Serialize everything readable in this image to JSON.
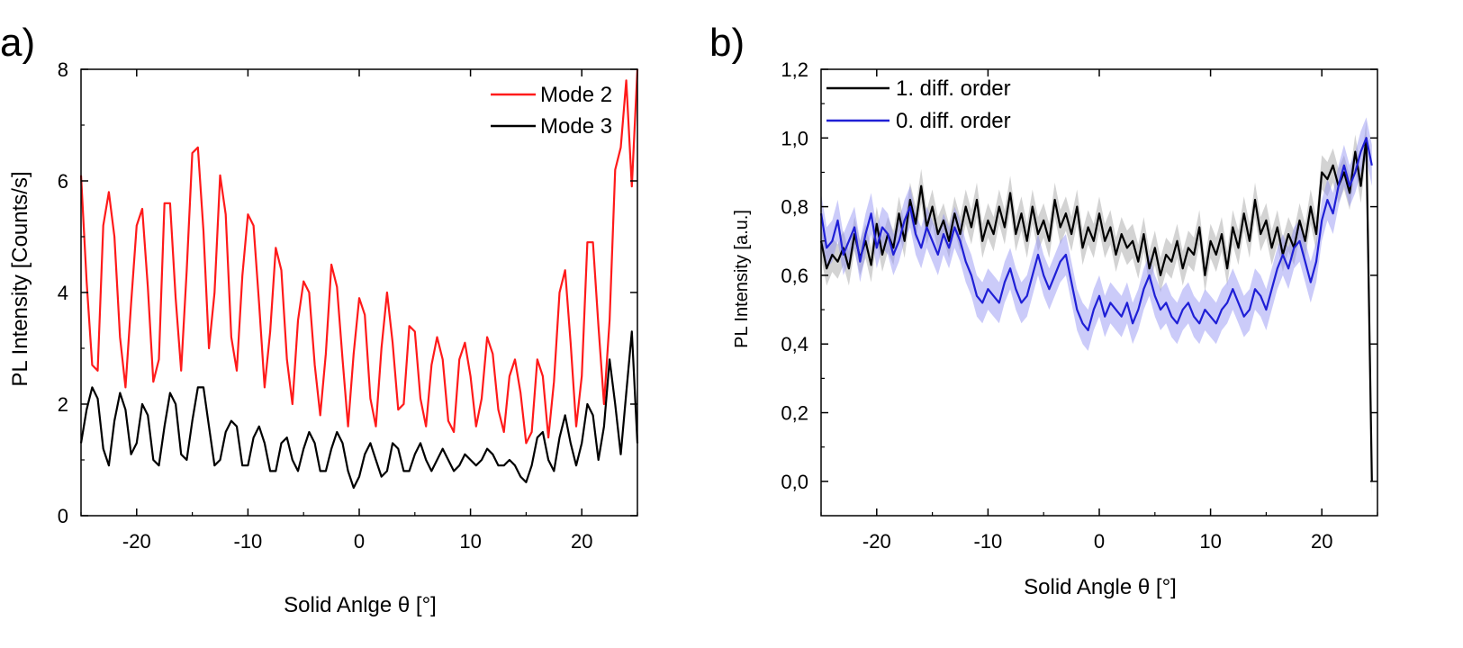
{
  "colors": {
    "mode2": "#ff1a1a",
    "mode3": "#000000",
    "order1": "#000000",
    "order1_band": "#9e9e9e",
    "order0": "#1f1fd6",
    "order0_band": "#8c8cf2"
  },
  "chart_data": [
    {
      "type": "line",
      "panel_label": "a)",
      "xlabel": "Solid Anlge θ [°]",
      "ylabel": "PL Intensity [Counts/s]",
      "xlim": [
        -25,
        25
      ],
      "ylim": [
        0,
        8
      ],
      "xticks": [
        -20,
        -10,
        0,
        10,
        20
      ],
      "xtick_labels": [
        "-20",
        "-10",
        "0",
        "10",
        "20"
      ],
      "yticks": [
        0,
        2,
        4,
        6,
        8
      ],
      "ytick_labels": [
        "0",
        "2",
        "4",
        "6",
        "8"
      ],
      "grid": false,
      "legend_position": "top-right",
      "series": [
        {
          "name": "Mode 2",
          "color_key": "mode2",
          "x": [
            -25,
            -24.5,
            -24,
            -23.5,
            -23,
            -22.5,
            -22,
            -21.5,
            -21,
            -20.5,
            -20,
            -19.5,
            -19,
            -18.5,
            -18,
            -17.5,
            -17,
            -16.5,
            -16,
            -15.5,
            -15,
            -14.5,
            -14,
            -13.5,
            -13,
            -12.5,
            -12,
            -11.5,
            -11,
            -10.5,
            -10,
            -9.5,
            -9,
            -8.5,
            -8,
            -7.5,
            -7,
            -6.5,
            -6,
            -5.5,
            -5,
            -4.5,
            -4,
            -3.5,
            -3,
            -2.5,
            -2,
            -1.5,
            -1,
            -0.5,
            0,
            0.5,
            1,
            1.5,
            2,
            2.5,
            3,
            3.5,
            4,
            4.5,
            5,
            5.5,
            6,
            6.5,
            7,
            7.5,
            8,
            8.5,
            9,
            9.5,
            10,
            10.5,
            11,
            11.5,
            12,
            12.5,
            13,
            13.5,
            14,
            14.5,
            15,
            15.5,
            16,
            16.5,
            17,
            17.5,
            18,
            18.5,
            19,
            19.5,
            20,
            20.5,
            21,
            21.5,
            22,
            22.5,
            23,
            23.5,
            24,
            24.5,
            25
          ],
          "y": [
            6.1,
            4.2,
            2.7,
            2.6,
            5.2,
            5.8,
            5.0,
            3.2,
            2.3,
            3.8,
            5.2,
            5.5,
            4.1,
            2.4,
            2.8,
            5.6,
            5.6,
            3.9,
            2.6,
            4.4,
            6.5,
            6.6,
            5.1,
            3.0,
            4.0,
            6.1,
            5.4,
            3.2,
            2.6,
            4.3,
            5.4,
            5.2,
            3.8,
            2.3,
            3.3,
            4.8,
            4.4,
            2.8,
            2.0,
            3.5,
            4.2,
            4.0,
            2.7,
            1.8,
            2.9,
            4.5,
            4.1,
            2.8,
            1.6,
            2.9,
            3.9,
            3.6,
            2.1,
            1.6,
            3.0,
            4.0,
            3.1,
            1.9,
            2.0,
            3.4,
            3.3,
            2.1,
            1.6,
            2.7,
            3.2,
            2.8,
            1.7,
            1.5,
            2.8,
            3.1,
            2.5,
            1.6,
            2.1,
            3.2,
            2.9,
            1.9,
            1.5,
            2.5,
            2.8,
            2.2,
            1.3,
            1.5,
            2.8,
            2.5,
            1.4,
            2.4,
            4.0,
            4.4,
            3.1,
            1.6,
            2.5,
            4.9,
            4.9,
            3.4,
            2.0,
            3.5,
            6.2,
            6.6,
            7.8,
            5.9,
            8.0
          ]
        },
        {
          "name": "Mode 3",
          "color_key": "mode3",
          "x": [
            -25,
            -24.5,
            -24,
            -23.5,
            -23,
            -22.5,
            -22,
            -21.5,
            -21,
            -20.5,
            -20,
            -19.5,
            -19,
            -18.5,
            -18,
            -17.5,
            -17,
            -16.5,
            -16,
            -15.5,
            -15,
            -14.5,
            -14,
            -13.5,
            -13,
            -12.5,
            -12,
            -11.5,
            -11,
            -10.5,
            -10,
            -9.5,
            -9,
            -8.5,
            -8,
            -7.5,
            -7,
            -6.5,
            -6,
            -5.5,
            -5,
            -4.5,
            -4,
            -3.5,
            -3,
            -2.5,
            -2,
            -1.5,
            -1,
            -0.5,
            0,
            0.5,
            1,
            1.5,
            2,
            2.5,
            3,
            3.5,
            4,
            4.5,
            5,
            5.5,
            6,
            6.5,
            7,
            7.5,
            8,
            8.5,
            9,
            9.5,
            10,
            10.5,
            11,
            11.5,
            12,
            12.5,
            13,
            13.5,
            14,
            14.5,
            15,
            15.5,
            16,
            16.5,
            17,
            17.5,
            18,
            18.5,
            19,
            19.5,
            20,
            20.5,
            21,
            21.5,
            22,
            22.5,
            23,
            23.5,
            24,
            24.5,
            25
          ],
          "y": [
            1.3,
            1.9,
            2.3,
            2.1,
            1.2,
            0.9,
            1.7,
            2.2,
            1.9,
            1.1,
            1.3,
            2.0,
            1.8,
            1.0,
            0.9,
            1.6,
            2.2,
            2.0,
            1.1,
            1.0,
            1.7,
            2.3,
            2.3,
            1.6,
            0.9,
            1.0,
            1.5,
            1.7,
            1.6,
            0.9,
            0.9,
            1.4,
            1.6,
            1.3,
            0.8,
            0.8,
            1.3,
            1.4,
            1.0,
            0.8,
            1.2,
            1.5,
            1.3,
            0.8,
            0.8,
            1.2,
            1.5,
            1.3,
            0.8,
            0.5,
            0.7,
            1.1,
            1.3,
            1.0,
            0.7,
            0.8,
            1.3,
            1.2,
            0.8,
            0.8,
            1.1,
            1.3,
            1.0,
            0.8,
            1.0,
            1.2,
            1.0,
            0.8,
            0.9,
            1.1,
            1.0,
            0.9,
            1.0,
            1.2,
            1.1,
            0.9,
            0.9,
            1.0,
            0.9,
            0.7,
            0.6,
            0.9,
            1.4,
            1.5,
            1.0,
            0.8,
            1.4,
            1.8,
            1.3,
            0.9,
            1.3,
            2.0,
            1.8,
            1.0,
            1.6,
            2.8,
            2.0,
            1.1,
            2.2,
            3.3,
            1.3
          ]
        }
      ]
    },
    {
      "type": "line",
      "panel_label": "b)",
      "xlabel": "Solid Angle θ [°]",
      "ylabel": "PL Intensity [a.u.]",
      "xlim": [
        -25,
        25
      ],
      "ylim": [
        -0.1,
        1.2
      ],
      "xticks": [
        -20,
        -10,
        0,
        10,
        20
      ],
      "xtick_labels": [
        "-20",
        "-10",
        "0",
        "10",
        "20"
      ],
      "yticks": [
        0,
        0.2,
        0.4,
        0.6,
        0.8,
        1.0,
        1.2
      ],
      "ytick_labels": [
        "0,0",
        "0,2",
        "0,4",
        "0,6",
        "0,8",
        "1,0",
        "1,2"
      ],
      "grid": false,
      "legend_position": "top-left",
      "series": [
        {
          "name": "1. diff. order",
          "color_key": "order1",
          "band_color_key": "order1_band",
          "band_halfwidth": 0.05,
          "x": [
            -25,
            -24.5,
            -24,
            -23.5,
            -23,
            -22.5,
            -22,
            -21.5,
            -21,
            -20.5,
            -20,
            -19.5,
            -19,
            -18.5,
            -18,
            -17.5,
            -17,
            -16.5,
            -16,
            -15.5,
            -15,
            -14.5,
            -14,
            -13.5,
            -13,
            -12.5,
            -12,
            -11.5,
            -11,
            -10.5,
            -10,
            -9.5,
            -9,
            -8.5,
            -8,
            -7.5,
            -7,
            -6.5,
            -6,
            -5.5,
            -5,
            -4.5,
            -4,
            -3.5,
            -3,
            -2.5,
            -2,
            -1.5,
            -1,
            -0.5,
            0,
            0.5,
            1,
            1.5,
            2,
            2.5,
            3,
            3.5,
            4,
            4.5,
            5,
            5.5,
            6,
            6.5,
            7,
            7.5,
            8,
            8.5,
            9,
            9.5,
            10,
            10.5,
            11,
            11.5,
            12,
            12.5,
            13,
            13.5,
            14,
            14.5,
            15,
            15.5,
            16,
            16.5,
            17,
            17.5,
            18,
            18.5,
            19,
            19.5,
            20,
            20.5,
            21,
            21.5,
            22,
            22.5,
            23,
            23.5,
            24,
            24.5
          ],
          "y": [
            0.7,
            0.62,
            0.66,
            0.64,
            0.68,
            0.62,
            0.72,
            0.65,
            0.7,
            0.63,
            0.75,
            0.66,
            0.72,
            0.68,
            0.78,
            0.7,
            0.82,
            0.75,
            0.86,
            0.74,
            0.8,
            0.72,
            0.76,
            0.7,
            0.78,
            0.72,
            0.8,
            0.74,
            0.82,
            0.7,
            0.76,
            0.72,
            0.8,
            0.74,
            0.84,
            0.72,
            0.78,
            0.7,
            0.8,
            0.72,
            0.76,
            0.7,
            0.82,
            0.74,
            0.78,
            0.72,
            0.8,
            0.68,
            0.74,
            0.7,
            0.78,
            0.7,
            0.74,
            0.66,
            0.72,
            0.68,
            0.7,
            0.64,
            0.72,
            0.62,
            0.68,
            0.6,
            0.66,
            0.64,
            0.7,
            0.62,
            0.68,
            0.66,
            0.74,
            0.6,
            0.7,
            0.66,
            0.72,
            0.62,
            0.74,
            0.68,
            0.78,
            0.7,
            0.82,
            0.72,
            0.76,
            0.68,
            0.74,
            0.66,
            0.72,
            0.68,
            0.76,
            0.7,
            0.8,
            0.72,
            0.9,
            0.88,
            0.92,
            0.86,
            0.9,
            0.84,
            0.96,
            0.86,
            1.0,
            0.0
          ]
        },
        {
          "name": "0. diff. order",
          "color_key": "order0",
          "band_color_key": "order0_band",
          "band_halfwidth": 0.06,
          "x": [
            -25,
            -24.5,
            -24,
            -23.5,
            -23,
            -22.5,
            -22,
            -21.5,
            -21,
            -20.5,
            -20,
            -19.5,
            -19,
            -18.5,
            -18,
            -17.5,
            -17,
            -16.5,
            -16,
            -15.5,
            -15,
            -14.5,
            -14,
            -13.5,
            -13,
            -12.5,
            -12,
            -11.5,
            -11,
            -10.5,
            -10,
            -9.5,
            -9,
            -8.5,
            -8,
            -7.5,
            -7,
            -6.5,
            -6,
            -5.5,
            -5,
            -4.5,
            -4,
            -3.5,
            -3,
            -2.5,
            -2,
            -1.5,
            -1,
            -0.5,
            0,
            0.5,
            1,
            1.5,
            2,
            2.5,
            3,
            3.5,
            4,
            4.5,
            5,
            5.5,
            6,
            6.5,
            7,
            7.5,
            8,
            8.5,
            9,
            9.5,
            10,
            10.5,
            11,
            11.5,
            12,
            12.5,
            13,
            13.5,
            14,
            14.5,
            15,
            15.5,
            16,
            16.5,
            17,
            17.5,
            18,
            18.5,
            19,
            19.5,
            20,
            20.5,
            21,
            21.5,
            22,
            22.5,
            23,
            23.5,
            24,
            24.5
          ],
          "y": [
            0.78,
            0.68,
            0.7,
            0.76,
            0.66,
            0.7,
            0.74,
            0.64,
            0.72,
            0.78,
            0.68,
            0.74,
            0.72,
            0.66,
            0.7,
            0.76,
            0.8,
            0.72,
            0.68,
            0.74,
            0.7,
            0.66,
            0.72,
            0.68,
            0.74,
            0.7,
            0.64,
            0.6,
            0.54,
            0.52,
            0.56,
            0.54,
            0.52,
            0.58,
            0.62,
            0.56,
            0.52,
            0.54,
            0.6,
            0.66,
            0.6,
            0.56,
            0.6,
            0.64,
            0.66,
            0.58,
            0.5,
            0.46,
            0.44,
            0.5,
            0.54,
            0.48,
            0.52,
            0.5,
            0.48,
            0.52,
            0.46,
            0.5,
            0.56,
            0.6,
            0.54,
            0.5,
            0.52,
            0.48,
            0.46,
            0.5,
            0.52,
            0.48,
            0.46,
            0.5,
            0.48,
            0.46,
            0.5,
            0.52,
            0.56,
            0.52,
            0.48,
            0.5,
            0.56,
            0.54,
            0.5,
            0.56,
            0.62,
            0.66,
            0.62,
            0.68,
            0.7,
            0.64,
            0.58,
            0.64,
            0.76,
            0.82,
            0.78,
            0.86,
            0.92,
            0.86,
            0.9,
            0.96,
            1.0,
            0.92
          ]
        }
      ]
    }
  ]
}
